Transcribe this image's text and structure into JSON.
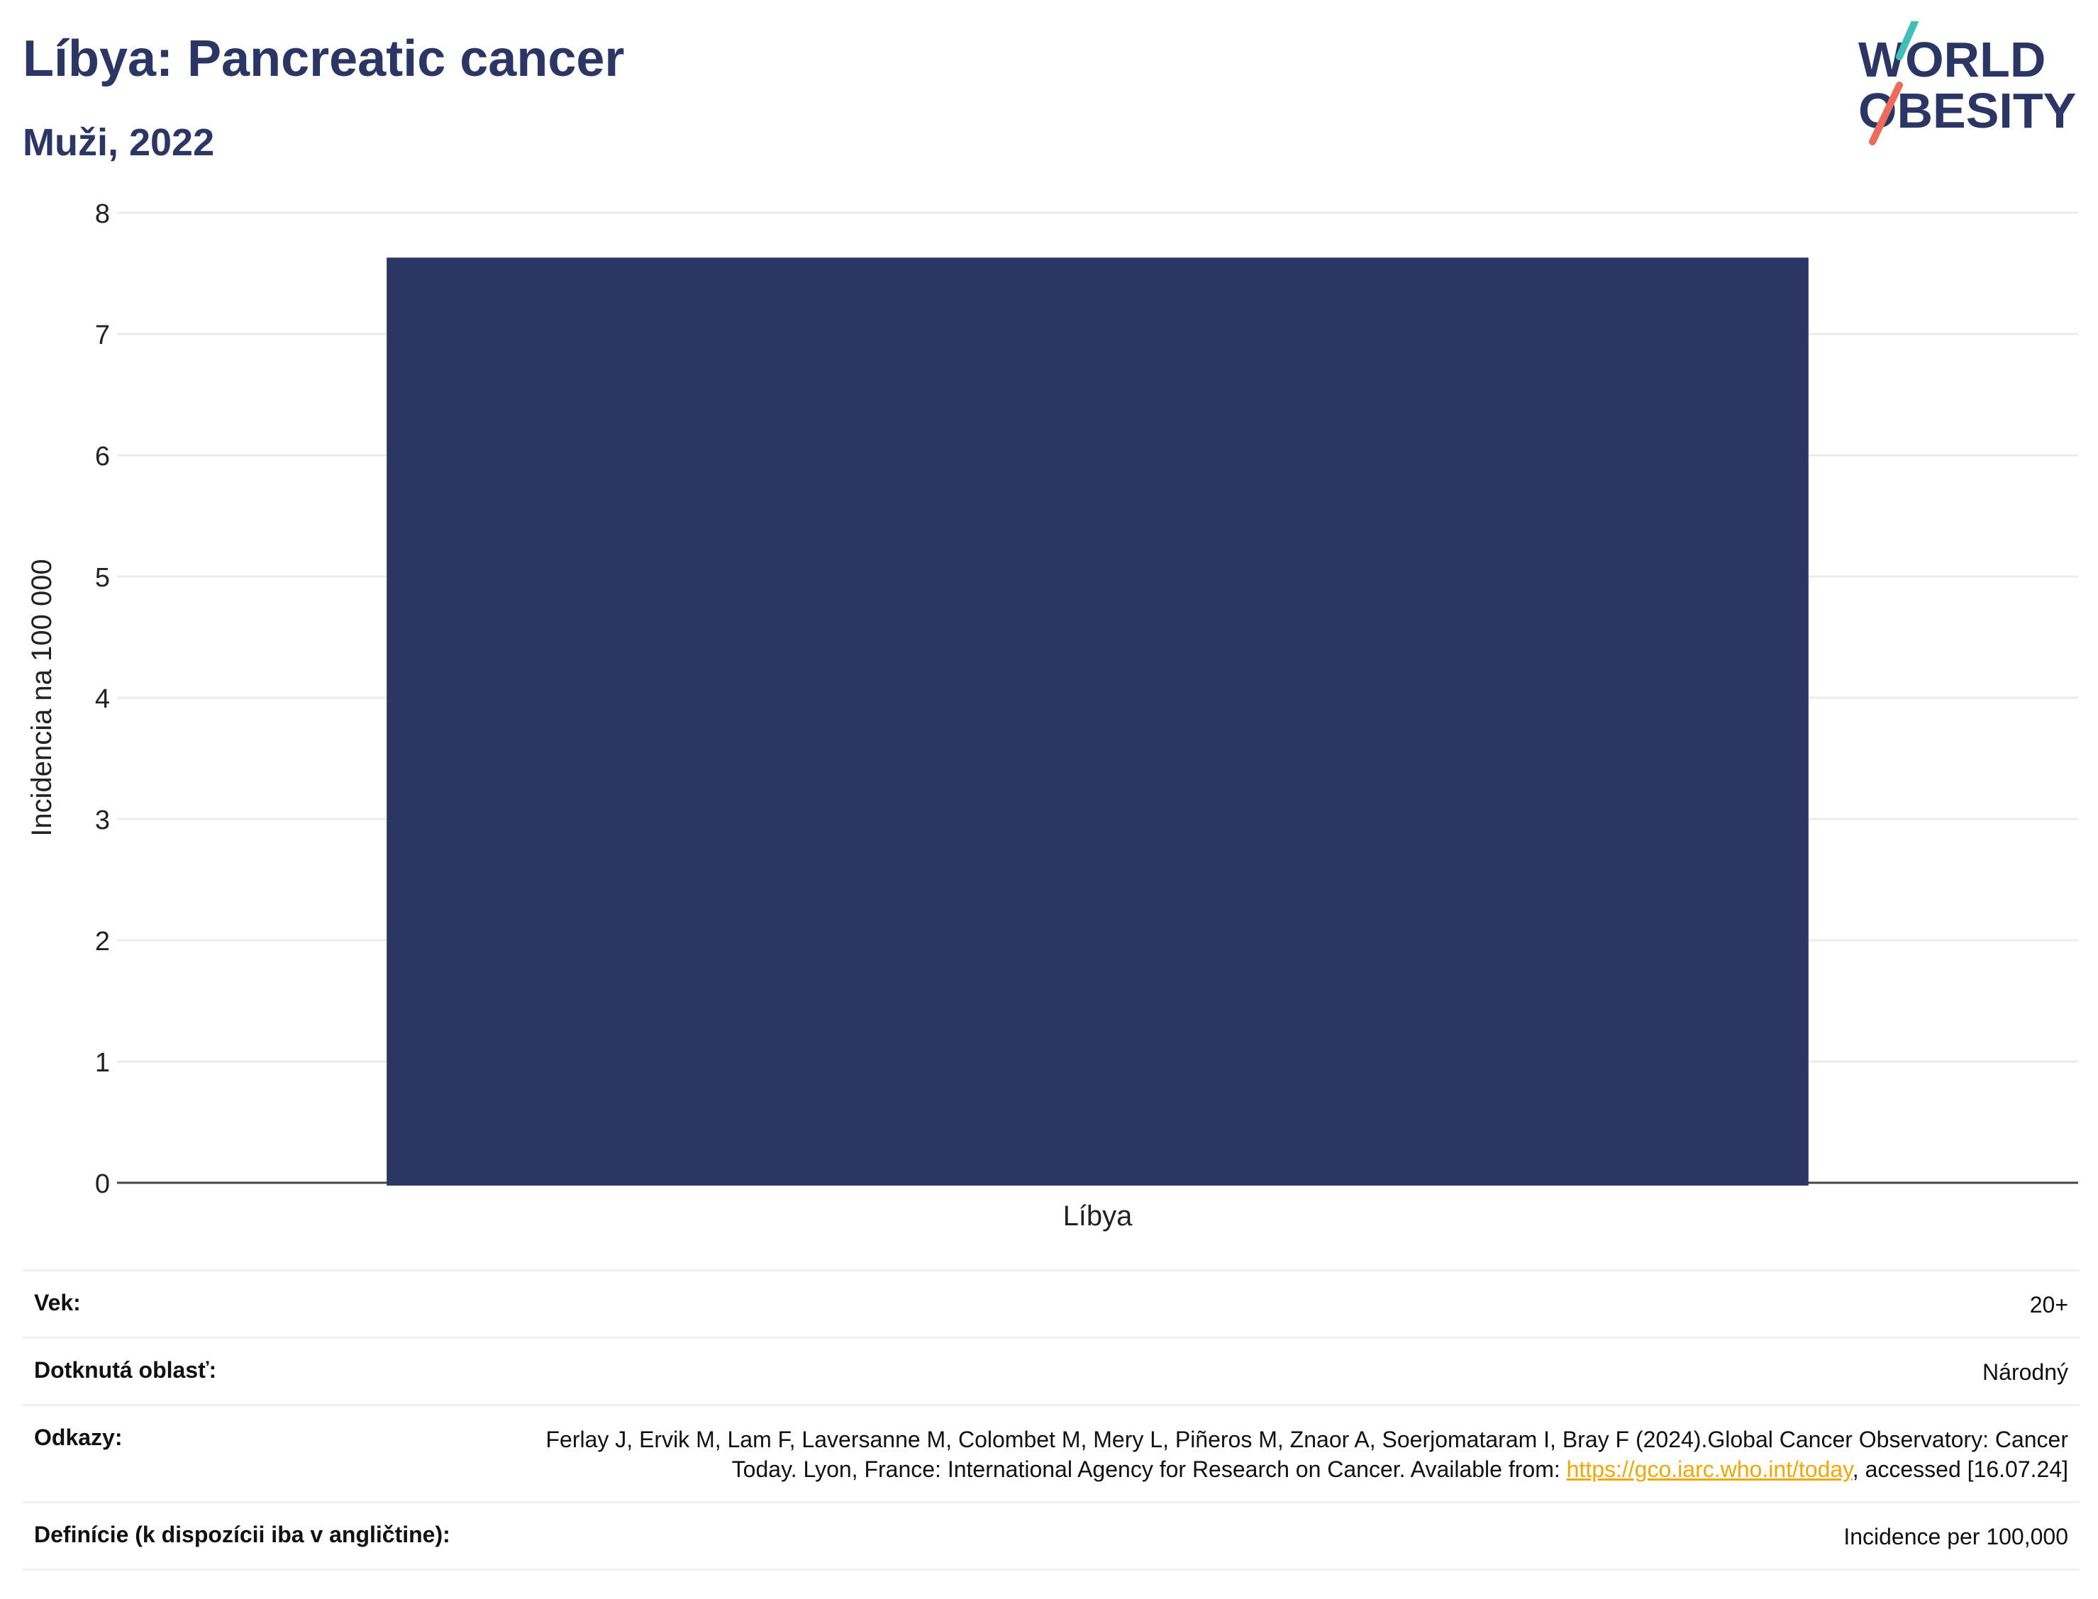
{
  "header": {
    "title": "Líbya: Pancreatic cancer",
    "subtitle": "Muži, 2022"
  },
  "logo": {
    "line1": "WORLD",
    "line2": "OBESITY",
    "colors": {
      "text": "#2b3664",
      "slash_top": "#3fbfb6",
      "slash_bottom": "#ee6b5b"
    }
  },
  "chart_data": {
    "type": "bar",
    "categories": [
      "Líbya"
    ],
    "values": [
      7.63
    ],
    "ylabel": "Incidencia na 100 000",
    "xlabel": "",
    "ylim": [
      0,
      8
    ],
    "yticks": [
      0,
      1,
      2,
      3,
      4,
      5,
      6,
      7,
      8
    ],
    "grid": true,
    "bar_color": "#2b3664"
  },
  "info": {
    "age_label": "Vek:",
    "age_value": "20+",
    "area_label": "Dotknutá oblasť:",
    "area_value": "Národný",
    "refs_label": "Odkazy:",
    "refs_text_1": "Ferlay J, Ervik M, Lam F, Laversanne M, Colombet M, Mery L, Piñeros M, Znaor A, Soerjomataram I, Bray F (2024).Global Cancer Observatory: Cancer Today. Lyon, France: International Agency for Research on Cancer. Available from: ",
    "refs_link": "https://gco.iarc.who.int/today",
    "refs_text_2": ", accessed [16.07.24]",
    "def_label": "Definície (k dispozícii iba v angličtine):",
    "def_value": "Incidence per 100,000"
  }
}
